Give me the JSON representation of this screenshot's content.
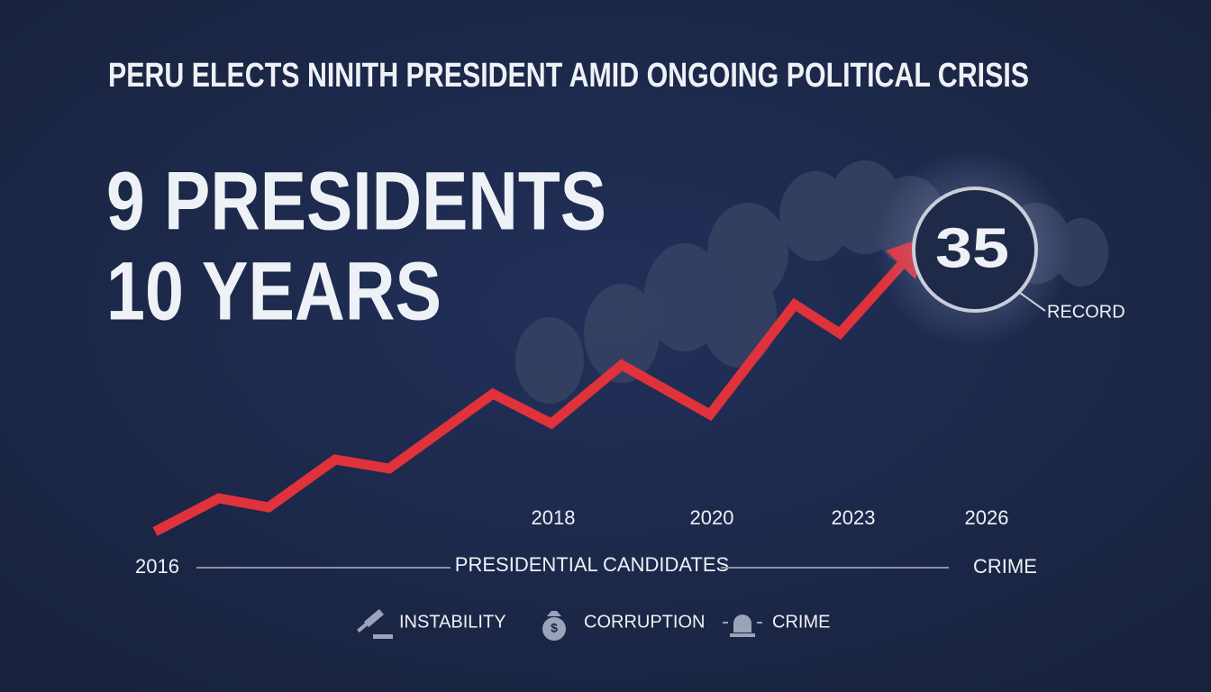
{
  "title": "PERU ELECTS NINITH PRESIDENT AMID ONGOING POLITICAL CRISIS",
  "headline": [
    "9 PRESIDENTS",
    "10 YEARS"
  ],
  "highlight": {
    "value": "35",
    "label": "RECORD"
  },
  "timeline": {
    "years": [
      "2018",
      "2020",
      "2023",
      "2026"
    ],
    "start": "2016",
    "axis_label": "PRESIDENTIAL CANDIDATES",
    "end_label": "CRIME"
  },
  "legend": [
    "INSTABILITY",
    "CORRUPTION",
    "CRIME"
  ]
}
